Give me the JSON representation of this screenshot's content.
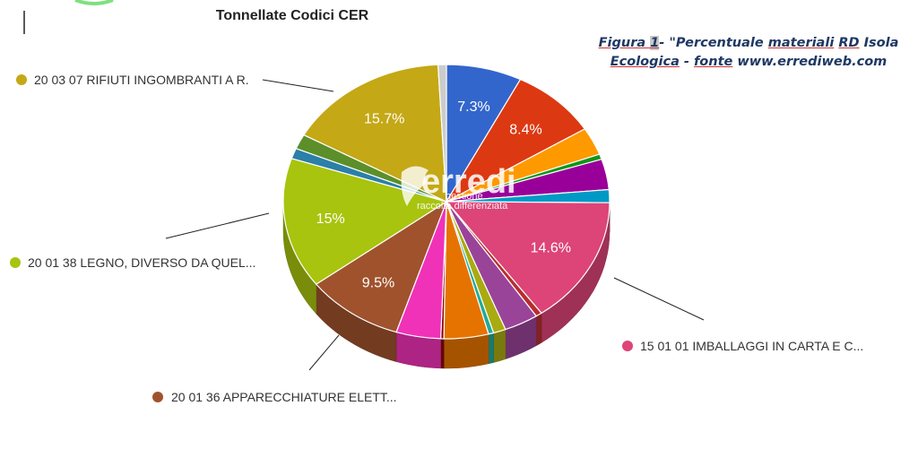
{
  "caption": {
    "prefix": "Figura ",
    "number": "1",
    "text_a": "- \"Percentuale ",
    "text_b": "materiali",
    "text_c": "  ",
    "text_d": "RD",
    "text_e": " Isola ",
    "line2_a": "Ecologica",
    "line2_b": " - ",
    "line2_c": "fonte",
    "line2_d": " www.errediweb.com"
  },
  "watermark": {
    "brand": "erredi",
    "line1": "gestione",
    "line2": "raccolta differenziata"
  },
  "chart_data": {
    "type": "pie",
    "title": "Tonnellate Codici CER",
    "slices": [
      {
        "value": 7.3,
        "label": "7.3%",
        "color": "#3366cc"
      },
      {
        "value": 8.4,
        "label": "8.4%",
        "color": "#dc3912"
      },
      {
        "value": 3.2,
        "label": "",
        "color": "#ff9900"
      },
      {
        "value": 0.6,
        "label": "",
        "color": "#109618"
      },
      {
        "value": 3.5,
        "label": "",
        "color": "#990099"
      },
      {
        "value": 1.5,
        "label": "",
        "color": "#0099c6"
      },
      {
        "value": 14.6,
        "label": "14.6%",
        "color": "#dd4477",
        "legend": "15 01 01 IMBALLAGGI IN CARTA E C..."
      },
      {
        "value": 0.6,
        "label": "",
        "color": "#b82e2e"
      },
      {
        "value": 3.3,
        "label": "",
        "color": "#994499"
      },
      {
        "value": 1.2,
        "label": "",
        "color": "#aaaa11"
      },
      {
        "value": 0.5,
        "label": "",
        "color": "#22aa99"
      },
      {
        "value": 4.3,
        "label": "",
        "color": "#e67300"
      },
      {
        "value": 0.3,
        "label": "",
        "color": "#8b0707"
      },
      {
        "value": 4.3,
        "label": "",
        "color": "#f032b8"
      },
      {
        "value": 9.5,
        "label": "9.5%",
        "color": "#a0522d",
        "legend": "20 01 36 APPARECCHIATURE ELETT..."
      },
      {
        "value": 15.0,
        "label": "15%",
        "color": "#a8c40e",
        "legend": "20 01 38 LEGNO, DIVERSO DA QUEL..."
      },
      {
        "value": 1.2,
        "label": "",
        "color": "#2b7fa8"
      },
      {
        "value": 1.7,
        "label": "",
        "color": "#5c8f2a"
      },
      {
        "value": 15.7,
        "label": "15.7%",
        "color": "#c4a816",
        "legend": "20 03 07 RIFIUTI INGOMBRANTI A R."
      },
      {
        "value": 0.8,
        "label": "",
        "color": "#cccccc"
      }
    ]
  }
}
